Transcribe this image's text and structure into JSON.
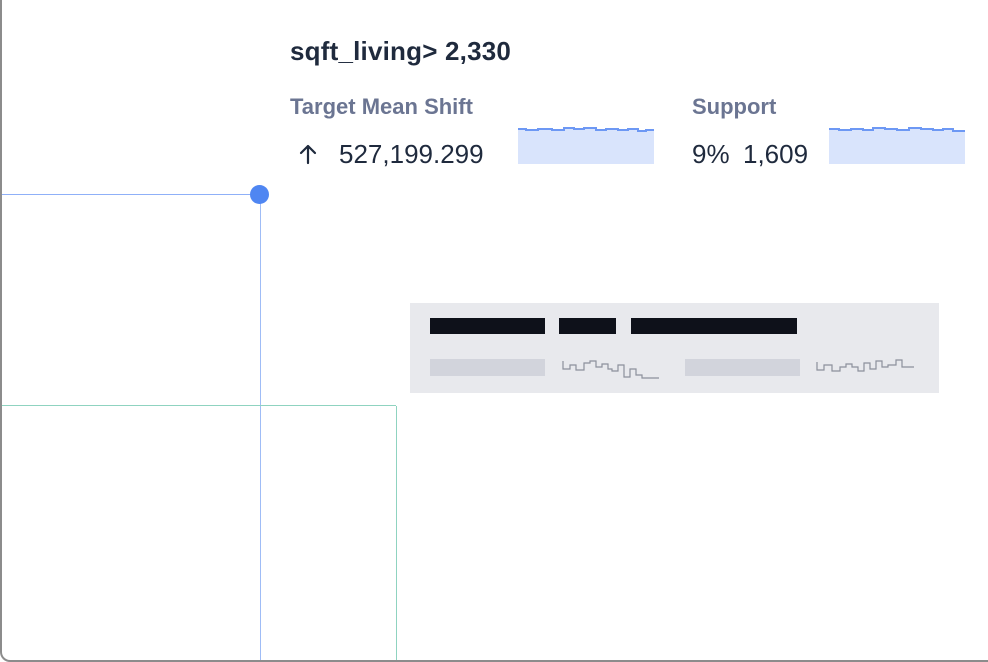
{
  "rule": {
    "title": "sqft_living> 2,330"
  },
  "metrics": {
    "target_mean_shift": {
      "label": "Target Mean Shift",
      "direction_icon": "arrow-up-icon",
      "value": "527,199.299"
    },
    "support": {
      "label": "Support",
      "percent": "9%",
      "count": "1,609"
    }
  },
  "colors": {
    "accent_blue": "#4f86f2",
    "spark_fill": "#d9e4fc",
    "spark_line": "#6d98f4",
    "guide_green": "#8fd3c0",
    "title_text": "#1f2a3d",
    "label_text": "#6b7592",
    "tooltip_bg": "#e8e9ed",
    "placeholder_dark": "#0e111a",
    "placeholder_light": "#d2d4dc"
  }
}
